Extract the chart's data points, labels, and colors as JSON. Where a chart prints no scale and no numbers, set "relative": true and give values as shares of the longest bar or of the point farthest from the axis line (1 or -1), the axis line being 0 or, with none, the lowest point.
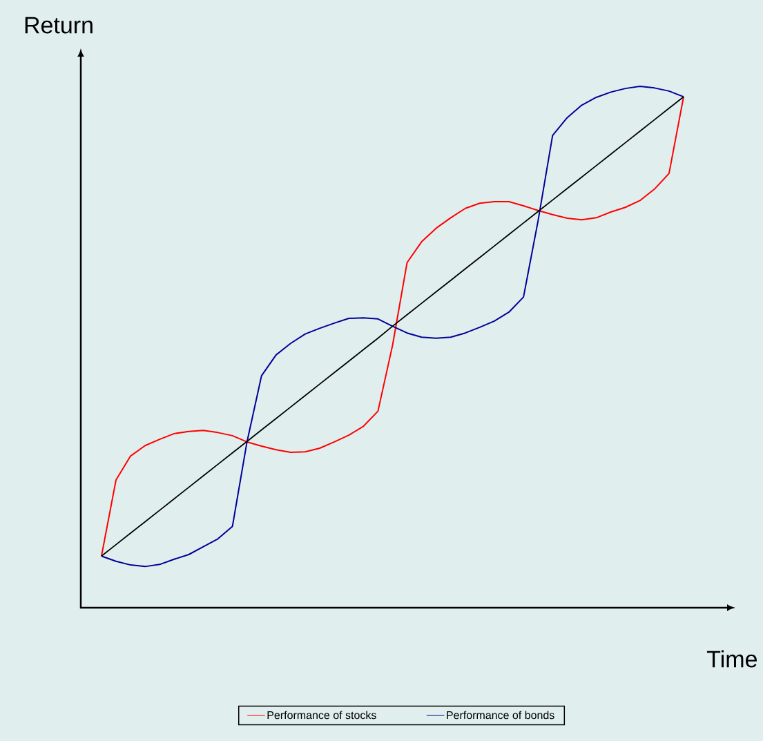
{
  "chart_data": {
    "type": "line",
    "xlabel": "Time",
    "ylabel": "Return",
    "relative": true,
    "legend": "bottom",
    "marker": "none",
    "line_style": "solid",
    "categories": [
      null,
      null,
      null,
      null,
      null,
      null,
      null,
      null,
      null,
      null,
      null,
      null,
      null,
      null,
      null,
      null,
      null,
      null,
      null,
      null,
      null,
      null,
      null,
      null,
      null,
      null,
      null,
      null,
      null,
      null,
      null,
      null,
      null,
      null,
      null,
      null,
      null,
      null,
      null,
      null,
      null
    ],
    "series": [
      {
        "name": "Performance of stocks",
        "color": "#ff0000",
        "values": [
          0.099,
          0.245,
          0.291,
          0.311,
          0.323,
          0.334,
          0.338,
          0.34,
          0.336,
          0.33,
          0.318,
          0.31,
          0.303,
          0.298,
          0.299,
          0.306,
          0.318,
          0.331,
          0.348,
          0.377,
          0.503,
          0.662,
          0.702,
          0.728,
          0.748,
          0.766,
          0.776,
          0.779,
          0.779,
          0.771,
          0.762,
          0.754,
          0.747,
          0.744,
          0.748,
          0.759,
          0.768,
          0.781,
          0.803,
          0.833,
          0.98
        ]
      },
      {
        "name": "Performance of bonds",
        "color": "#000099",
        "values": [
          0.099,
          0.089,
          0.082,
          0.079,
          0.083,
          0.093,
          0.102,
          0.117,
          0.132,
          0.156,
          0.318,
          0.445,
          0.485,
          0.507,
          0.525,
          0.536,
          0.546,
          0.555,
          0.556,
          0.554,
          0.54,
          0.527,
          0.519,
          0.517,
          0.519,
          0.527,
          0.538,
          0.55,
          0.567,
          0.596,
          0.742,
          0.906,
          0.94,
          0.964,
          0.979,
          0.989,
          0.996,
          1.0,
          0.997,
          0.991,
          0.98
        ]
      },
      {
        "color": "#000000",
        "values": [
          0.099,
          0.121,
          0.143,
          0.165,
          0.187,
          0.209,
          0.231,
          0.253,
          0.275,
          0.297,
          0.319,
          0.341,
          0.363,
          0.385,
          0.407,
          0.429,
          0.451,
          0.473,
          0.495,
          0.517,
          0.54,
          0.562,
          0.584,
          0.606,
          0.628,
          0.65,
          0.672,
          0.694,
          0.716,
          0.738,
          0.76,
          0.782,
          0.804,
          0.826,
          0.848,
          0.87,
          0.892,
          0.914,
          0.936,
          0.958,
          0.98
        ]
      }
    ]
  }
}
